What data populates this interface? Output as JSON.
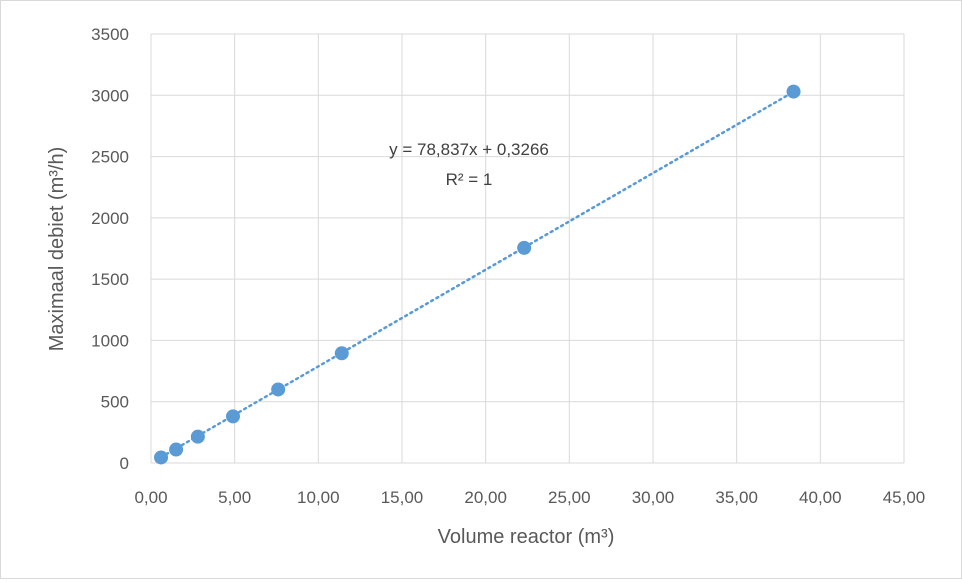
{
  "chart_data": {
    "type": "scatter",
    "xlabel": "Volume reactor (m³)",
    "ylabel": "Maximaal debiet (m³/h)",
    "xlim": [
      0,
      45
    ],
    "ylim": [
      0,
      3500
    ],
    "x_ticks": [
      "0,00",
      "5,00",
      "10,00",
      "15,00",
      "20,00",
      "25,00",
      "30,00",
      "35,00",
      "40,00",
      "45,00"
    ],
    "y_ticks": [
      "0",
      "500",
      "1000",
      "1500",
      "2000",
      "2500",
      "3000",
      "3500"
    ],
    "grid": true,
    "series": [
      {
        "points": [
          {
            "x": 0.6,
            "y": 45
          },
          {
            "x": 1.5,
            "y": 110
          },
          {
            "x": 2.8,
            "y": 215
          },
          {
            "x": 4.9,
            "y": 380
          },
          {
            "x": 7.6,
            "y": 600
          },
          {
            "x": 11.4,
            "y": 895
          },
          {
            "x": 22.3,
            "y": 1755
          },
          {
            "x": 38.4,
            "y": 3030
          }
        ],
        "color": "#5b9bd5"
      }
    ],
    "trendline": {
      "type": "linear",
      "slope": 78.837,
      "intercept": 0.3266,
      "color": "#5b9bd5",
      "equation_label": "y = 78,837x + 0,3266",
      "r2_label": "R² = 1"
    }
  }
}
